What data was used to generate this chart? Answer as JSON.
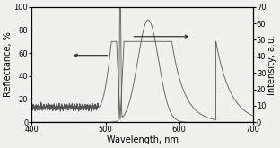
{
  "xlabel": "Wavelength, nm",
  "ylabel_left": "Reflectance, %",
  "ylabel_right": "Intensity, a.u.",
  "xlim": [
    400,
    700
  ],
  "ylim_left": [
    0,
    100
  ],
  "ylim_right": [
    0,
    70
  ],
  "yticks_left": [
    0,
    20,
    40,
    60,
    80,
    100
  ],
  "yticks_right": [
    0,
    10,
    20,
    30,
    40,
    50,
    60,
    70
  ],
  "xticks": [
    400,
    500,
    600,
    700
  ],
  "background_color": "#f0f0ee",
  "line_color": "#555555"
}
